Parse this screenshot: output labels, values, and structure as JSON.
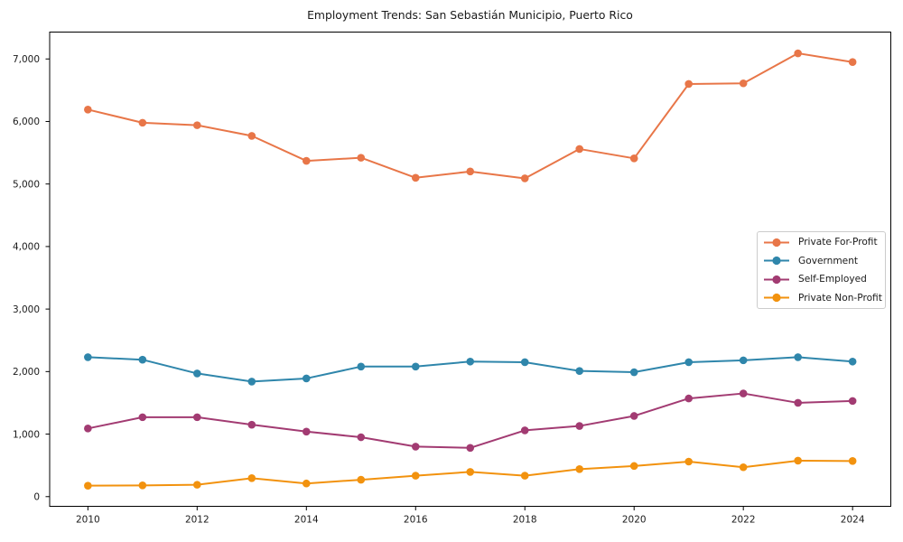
{
  "chart_data": {
    "type": "line",
    "title": "Employment Trends: San Sebastián Municipio, Puerto Rico",
    "xlabel": "",
    "ylabel": "",
    "x": [
      2010,
      2011,
      2012,
      2013,
      2014,
      2015,
      2016,
      2017,
      2018,
      2019,
      2020,
      2021,
      2022,
      2023,
      2024
    ],
    "xticks": [
      2010,
      2012,
      2014,
      2016,
      2018,
      2020,
      2022,
      2024
    ],
    "xtick_labels": [
      "2010",
      "2012",
      "2014",
      "2016",
      "2018",
      "2020",
      "2022",
      "2024"
    ],
    "yticks": [
      0,
      1000,
      2000,
      3000,
      4000,
      5000,
      6000,
      7000
    ],
    "ytick_labels": [
      "0",
      "1,000",
      "2,000",
      "3,000",
      "4,000",
      "5,000",
      "6,000",
      "7,000"
    ],
    "xlim": [
      2009.3,
      2024.7
    ],
    "ylim": [
      -155,
      7430
    ],
    "grid": false,
    "legend_position": "center right",
    "series": [
      {
        "name": "Private For-Profit",
        "color": "#E87648",
        "values": [
          6190,
          5980,
          5940,
          5770,
          5370,
          5420,
          5100,
          5200,
          5090,
          5560,
          5410,
          6600,
          6610,
          7090,
          6950
        ]
      },
      {
        "name": "Government",
        "color": "#2F86AB",
        "values": [
          2230,
          2190,
          1970,
          1840,
          1890,
          2080,
          2080,
          2160,
          2150,
          2010,
          1990,
          2150,
          2180,
          2230,
          2160
        ]
      },
      {
        "name": "Self-Employed",
        "color": "#A23B72",
        "values": [
          1090,
          1270,
          1270,
          1150,
          1040,
          950,
          800,
          780,
          1060,
          1130,
          1290,
          1570,
          1650,
          1500,
          1530
        ]
      },
      {
        "name": "Private Non-Profit",
        "color": "#F2920E",
        "values": [
          175,
          180,
          190,
          295,
          210,
          270,
          335,
          395,
          335,
          440,
          490,
          560,
          470,
          575,
          570
        ]
      }
    ],
    "colors": {
      "background": "#ffffff",
      "spine": "#000000",
      "tick_text": "#1a1a1a",
      "legend_border": "#cccccc"
    }
  }
}
